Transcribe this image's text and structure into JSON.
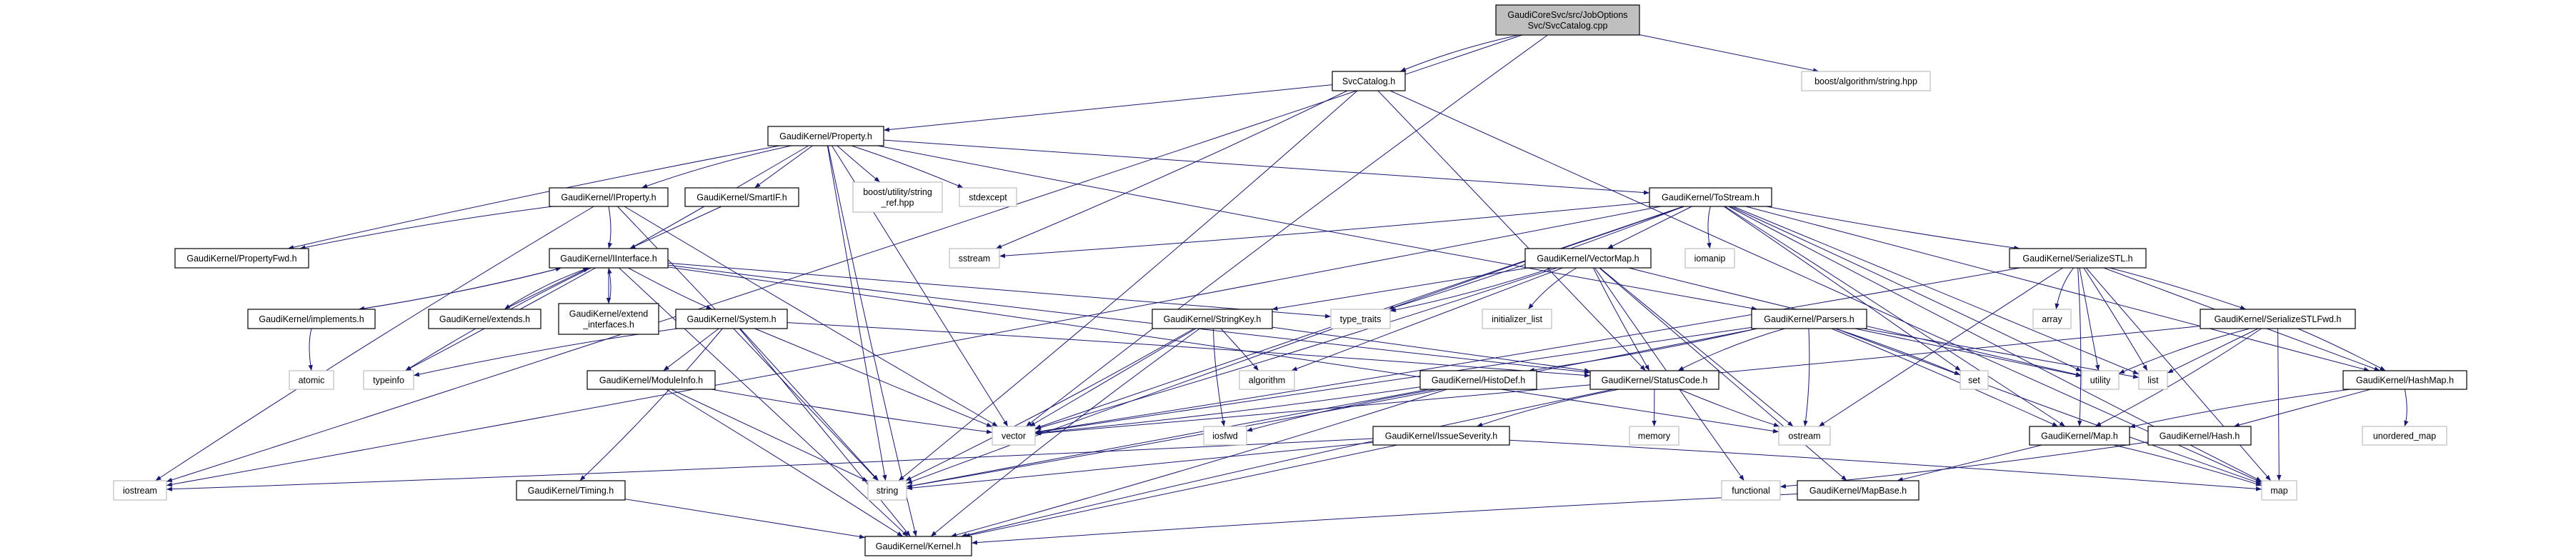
{
  "colors": {
    "edge": "#191970",
    "root_fill": "#bfbfbf",
    "system_border": "#bfbfbf",
    "missing_border": "#ff0000",
    "doc_border": "#000000"
  },
  "nodes": [
    {
      "id": "root",
      "lines": [
        "GaudiCoreSvc/src/JobOptions",
        "Svc/SvcCatalog.cpp"
      ],
      "kind": "root"
    },
    {
      "id": "svccatalog",
      "lines": [
        "SvcCatalog.h"
      ],
      "kind": "doc"
    },
    {
      "id": "boostalgo",
      "lines": [
        "boost/algorithm/string.hpp"
      ],
      "kind": "sys"
    },
    {
      "id": "property",
      "lines": [
        "GaudiKernel/Property.h"
      ],
      "kind": "doc"
    },
    {
      "id": "iproperty",
      "lines": [
        "GaudiKernel/IProperty.h"
      ],
      "kind": "doc"
    },
    {
      "id": "smartif",
      "lines": [
        "GaudiKernel/SmartIF.h"
      ],
      "kind": "doc"
    },
    {
      "id": "stringref",
      "lines": [
        "boost/utility/string",
        "_ref.hpp"
      ],
      "kind": "sys"
    },
    {
      "id": "stdexcept",
      "lines": [
        "stdexcept"
      ],
      "kind": "sys"
    },
    {
      "id": "tostream",
      "lines": [
        "GaudiKernel/ToStream.h"
      ],
      "kind": "doc"
    },
    {
      "id": "propertyfwd",
      "lines": [
        "GaudiKernel/PropertyFwd.h"
      ],
      "kind": "doc"
    },
    {
      "id": "iinterface",
      "lines": [
        "GaudiKernel/IInterface.h"
      ],
      "kind": "doc"
    },
    {
      "id": "sstream",
      "lines": [
        "sstream"
      ],
      "kind": "sys"
    },
    {
      "id": "vectormap",
      "lines": [
        "GaudiKernel/VectorMap.h"
      ],
      "kind": "doc"
    },
    {
      "id": "iomanip",
      "lines": [
        "iomanip"
      ],
      "kind": "sys"
    },
    {
      "id": "serializestl",
      "lines": [
        "GaudiKernel/SerializeSTL.h"
      ],
      "kind": "doc"
    },
    {
      "id": "implements",
      "lines": [
        "GaudiKernel/implements.h"
      ],
      "kind": "doc"
    },
    {
      "id": "extends",
      "lines": [
        "GaudiKernel/extends.h"
      ],
      "kind": "doc"
    },
    {
      "id": "extendif",
      "lines": [
        "GaudiKernel/extend",
        "_interfaces.h"
      ],
      "kind": "doc"
    },
    {
      "id": "system",
      "lines": [
        "GaudiKernel/System.h"
      ],
      "kind": "doc"
    },
    {
      "id": "stringkey",
      "lines": [
        "GaudiKernel/StringKey.h"
      ],
      "kind": "doc"
    },
    {
      "id": "typetraits",
      "lines": [
        "type_traits"
      ],
      "kind": "sys"
    },
    {
      "id": "initlist",
      "lines": [
        "initializer_list"
      ],
      "kind": "sys"
    },
    {
      "id": "parsers",
      "lines": [
        "GaudiKernel/Parsers.h"
      ],
      "kind": "doc"
    },
    {
      "id": "array",
      "lines": [
        "array"
      ],
      "kind": "sys"
    },
    {
      "id": "serializestlfwd",
      "lines": [
        "GaudiKernel/SerializeSTLFwd.h"
      ],
      "kind": "doc"
    },
    {
      "id": "atomic",
      "lines": [
        "atomic"
      ],
      "kind": "sys"
    },
    {
      "id": "typeinfo",
      "lines": [
        "typeinfo"
      ],
      "kind": "sys"
    },
    {
      "id": "moduleinfo",
      "lines": [
        "GaudiKernel/ModuleInfo.h"
      ],
      "kind": "doc"
    },
    {
      "id": "algorithm",
      "lines": [
        "algorithm"
      ],
      "kind": "sys"
    },
    {
      "id": "histodef",
      "lines": [
        "GaudiKernel/HistoDef.h"
      ],
      "kind": "doc"
    },
    {
      "id": "statuscode",
      "lines": [
        "GaudiKernel/StatusCode.h"
      ],
      "kind": "doc"
    },
    {
      "id": "set",
      "lines": [
        "set"
      ],
      "kind": "sys"
    },
    {
      "id": "utility",
      "lines": [
        "utility"
      ],
      "kind": "sys"
    },
    {
      "id": "list",
      "lines": [
        "list"
      ],
      "kind": "sys"
    },
    {
      "id": "hashmap",
      "lines": [
        "GaudiKernel/HashMap.h"
      ],
      "kind": "doc"
    },
    {
      "id": "vector",
      "lines": [
        "vector"
      ],
      "kind": "sys"
    },
    {
      "id": "iosfwd",
      "lines": [
        "iosfwd"
      ],
      "kind": "sys"
    },
    {
      "id": "issueseverity",
      "lines": [
        "GaudiKernel/IssueSeverity.h"
      ],
      "kind": "doc"
    },
    {
      "id": "memory",
      "lines": [
        "memory"
      ],
      "kind": "sys"
    },
    {
      "id": "ostream",
      "lines": [
        "ostream"
      ],
      "kind": "sys"
    },
    {
      "id": "map_h",
      "lines": [
        "GaudiKernel/Map.h"
      ],
      "kind": "doc"
    },
    {
      "id": "hash",
      "lines": [
        "GaudiKernel/Hash.h"
      ],
      "kind": "missing"
    },
    {
      "id": "unorderedmap",
      "lines": [
        "unordered_map"
      ],
      "kind": "sys"
    },
    {
      "id": "iostream",
      "lines": [
        "iostream"
      ],
      "kind": "sys"
    },
    {
      "id": "timing",
      "lines": [
        "GaudiKernel/Timing.h"
      ],
      "kind": "missing"
    },
    {
      "id": "string",
      "lines": [
        "string"
      ],
      "kind": "sys"
    },
    {
      "id": "functional",
      "lines": [
        "functional"
      ],
      "kind": "sys"
    },
    {
      "id": "mapbase",
      "lines": [
        "GaudiKernel/MapBase.h"
      ],
      "kind": "doc"
    },
    {
      "id": "map",
      "lines": [
        "map"
      ],
      "kind": "sys"
    },
    {
      "id": "kernel",
      "lines": [
        "GaudiKernel/Kernel.h"
      ],
      "kind": "doc"
    }
  ],
  "edges": [
    [
      "root",
      "svccatalog"
    ],
    [
      "root",
      "boostalgo"
    ],
    [
      "root",
      "iostream"
    ],
    [
      "root",
      "vector"
    ],
    [
      "svccatalog",
      "property"
    ],
    [
      "svccatalog",
      "sstream"
    ],
    [
      "svccatalog",
      "statuscode"
    ],
    [
      "svccatalog",
      "map"
    ],
    [
      "svccatalog",
      "string"
    ],
    [
      "property",
      "iproperty"
    ],
    [
      "property",
      "smartif"
    ],
    [
      "property",
      "stringref"
    ],
    [
      "property",
      "stdexcept"
    ],
    [
      "property",
      "tostream"
    ],
    [
      "property",
      "parsers"
    ],
    [
      "property",
      "propertyfwd"
    ],
    [
      "property",
      "string"
    ],
    [
      "property",
      "typeinfo"
    ],
    [
      "property",
      "kernel"
    ],
    [
      "property",
      "vector"
    ],
    [
      "iproperty",
      "iinterface"
    ],
    [
      "iproperty",
      "propertyfwd"
    ],
    [
      "iproperty",
      "string"
    ],
    [
      "iproperty",
      "vector"
    ],
    [
      "iproperty",
      "iostream"
    ],
    [
      "smartif",
      "iinterface"
    ],
    [
      "iinterface",
      "implements"
    ],
    [
      "iinterface",
      "extends"
    ],
    [
      "iinterface",
      "extendif"
    ],
    [
      "iinterface",
      "system"
    ],
    [
      "iinterface",
      "typeinfo"
    ],
    [
      "iinterface",
      "typetraits"
    ],
    [
      "iinterface",
      "statuscode"
    ],
    [
      "iinterface",
      "ostream"
    ],
    [
      "iinterface",
      "kernel"
    ],
    [
      "implements",
      "iinterface"
    ],
    [
      "implements",
      "atomic"
    ],
    [
      "extends",
      "iinterface"
    ],
    [
      "extendif",
      "iinterface"
    ],
    [
      "system",
      "typeinfo"
    ],
    [
      "system",
      "moduleinfo"
    ],
    [
      "system",
      "timing"
    ],
    [
      "system",
      "string"
    ],
    [
      "system",
      "vector"
    ],
    [
      "system",
      "kernel"
    ],
    [
      "system",
      "statuscode"
    ],
    [
      "moduleinfo",
      "string"
    ],
    [
      "moduleinfo",
      "vector"
    ],
    [
      "moduleinfo",
      "kernel"
    ],
    [
      "timing",
      "kernel"
    ],
    [
      "tostream",
      "sstream"
    ],
    [
      "tostream",
      "iomanip"
    ],
    [
      "tostream",
      "vectormap"
    ],
    [
      "tostream",
      "serializestl"
    ],
    [
      "tostream",
      "string"
    ],
    [
      "tostream",
      "vector"
    ],
    [
      "tostream",
      "typetraits"
    ],
    [
      "tostream",
      "set"
    ],
    [
      "tostream",
      "list"
    ],
    [
      "tostream",
      "map"
    ],
    [
      "tostream",
      "map_h"
    ],
    [
      "tostream",
      "hashmap"
    ],
    [
      "tostream",
      "iostream"
    ],
    [
      "tostream",
      "utility"
    ],
    [
      "vectormap",
      "stringkey"
    ],
    [
      "vectormap",
      "typetraits"
    ],
    [
      "vectormap",
      "initlist"
    ],
    [
      "vectormap",
      "algorithm"
    ],
    [
      "vectormap",
      "vector"
    ],
    [
      "vectormap",
      "statuscode"
    ],
    [
      "vectormap",
      "ostream"
    ],
    [
      "vectormap",
      "utility"
    ],
    [
      "vectormap",
      "functional"
    ],
    [
      "vectormap",
      "mapbase"
    ],
    [
      "stringkey",
      "algorithm"
    ],
    [
      "stringkey",
      "iosfwd"
    ],
    [
      "stringkey",
      "vector"
    ],
    [
      "stringkey",
      "string"
    ],
    [
      "stringkey",
      "kernel"
    ],
    [
      "stringkey",
      "statuscode"
    ],
    [
      "histodef",
      "vector"
    ],
    [
      "histodef",
      "iosfwd"
    ],
    [
      "histodef",
      "string"
    ],
    [
      "histodef",
      "kernel"
    ],
    [
      "statuscode",
      "issueseverity"
    ],
    [
      "statuscode",
      "memory"
    ],
    [
      "statuscode",
      "ostream"
    ],
    [
      "statuscode",
      "kernel"
    ],
    [
      "issueseverity",
      "string"
    ],
    [
      "issueseverity",
      "iostream"
    ],
    [
      "issueseverity",
      "map"
    ],
    [
      "issueseverity",
      "kernel"
    ],
    [
      "parsers",
      "histodef"
    ],
    [
      "parsers",
      "statuscode"
    ],
    [
      "parsers",
      "vector"
    ],
    [
      "parsers",
      "string"
    ],
    [
      "parsers",
      "set"
    ],
    [
      "parsers",
      "list"
    ],
    [
      "parsers",
      "map"
    ],
    [
      "parsers",
      "map_h"
    ],
    [
      "parsers",
      "utility"
    ],
    [
      "parsers",
      "ostream"
    ],
    [
      "serializestl",
      "array"
    ],
    [
      "serializestl",
      "utility"
    ],
    [
      "serializestl",
      "list"
    ],
    [
      "serializestl",
      "serializestlfwd"
    ],
    [
      "serializestl",
      "hashmap"
    ],
    [
      "serializestl",
      "map_h"
    ],
    [
      "serializestl",
      "map"
    ],
    [
      "serializestl",
      "ostream"
    ],
    [
      "serializestl",
      "vector"
    ],
    [
      "serializestlfwd",
      "utility"
    ],
    [
      "serializestlfwd",
      "list"
    ],
    [
      "serializestlfwd",
      "map_h"
    ],
    [
      "serializestlfwd",
      "hashmap"
    ],
    [
      "serializestlfwd",
      "map"
    ],
    [
      "serializestlfwd",
      "vector"
    ],
    [
      "hashmap",
      "map_h"
    ],
    [
      "hashmap",
      "hash"
    ],
    [
      "hashmap",
      "unorderedmap"
    ],
    [
      "map_h",
      "map"
    ],
    [
      "map_h",
      "mapbase"
    ],
    [
      "hash",
      "functional"
    ],
    [
      "mapbase",
      "kernel"
    ]
  ]
}
